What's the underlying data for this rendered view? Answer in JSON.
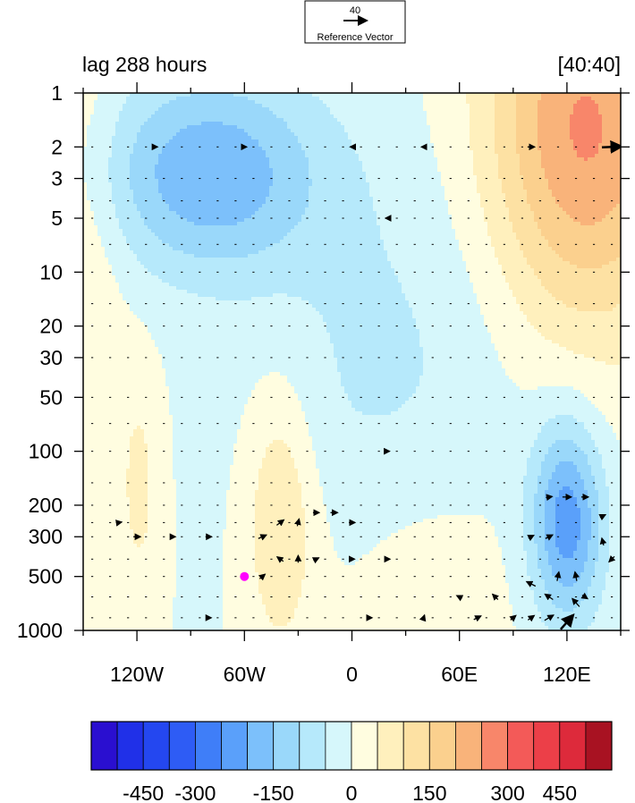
{
  "chart_data": {
    "type": "heatmap",
    "title_left": "lag 288 hours",
    "title_right": "[40:40]",
    "reference_vector": {
      "value": "40",
      "label": "Reference Vector"
    },
    "x_ticks": [
      "120W",
      "60W",
      "0",
      "60E",
      "120E"
    ],
    "x_tick_values": [
      -120,
      -60,
      0,
      60,
      120
    ],
    "xlim": [
      -150,
      150
    ],
    "y_ticks": [
      "1",
      "2",
      "3",
      "5",
      "10",
      "20",
      "30",
      "50",
      "100",
      "200",
      "300",
      "500",
      "1000"
    ],
    "y_tick_values": [
      1,
      2,
      3,
      5,
      10,
      20,
      30,
      50,
      100,
      200,
      300,
      500,
      1000
    ],
    "ylim": [
      1,
      1000
    ],
    "y_scale": "log",
    "y_direction": "reversed",
    "colorbar": {
      "tick_labels": [
        "-450",
        "-300",
        "-150",
        "0",
        "150",
        "300",
        "450"
      ],
      "tick_values": [
        -450,
        -300,
        -150,
        0,
        150,
        300,
        450
      ],
      "levels": [
        -525,
        -450,
        -375,
        -300,
        -250,
        -200,
        -150,
        -100,
        -50,
        0,
        50,
        100,
        150,
        200,
        250,
        300,
        375,
        450,
        525
      ],
      "colors": [
        "#2a0fd0",
        "#2030e8",
        "#2447f0",
        "#2e5cf5",
        "#3f7ef8",
        "#5aa0fa",
        "#7cc0fb",
        "#9ad8fa",
        "#b6e9fb",
        "#d6f7fb",
        "#fffde0",
        "#fff0bd",
        "#fde1a3",
        "#fbd08e",
        "#f9b37a",
        "#f8866a",
        "#f35a58",
        "#ec3f48",
        "#dd2a3b",
        "#a81222"
      ]
    },
    "marker": {
      "lon": -60,
      "pressure": 500,
      "color": "#ff00ff"
    },
    "field_blobs": [
      {
        "lon": -80,
        "p": 2.8,
        "slon": 60,
        "slp": 0.55,
        "amp": -190
      },
      {
        "lon": 20,
        "p": 35,
        "slon": 80,
        "slp": 1.3,
        "amp": -60
      },
      {
        "lon": 120,
        "p": 250,
        "slon": 20,
        "slp": 0.55,
        "amp": -230
      },
      {
        "lon": 130,
        "p": 1.6,
        "slon": 55,
        "slp": 1.1,
        "amp": 260
      },
      {
        "lon": -40,
        "p": 230,
        "slon": 20,
        "slp": 0.75,
        "amp": 110
      },
      {
        "lon": -118,
        "p": 160,
        "slon": 12,
        "slp": 0.7,
        "amp": 60
      },
      {
        "lon": -150,
        "p": 10,
        "slon": 22,
        "slp": 1.8,
        "amp": 55
      },
      {
        "lon": 40,
        "p": 500,
        "slon": 55,
        "slp": 0.7,
        "amp": 45
      }
    ],
    "vectors": [
      {
        "lon": -110,
        "p": 2,
        "u": 6,
        "v": 0
      },
      {
        "lon": -60,
        "p": 2,
        "u": 5,
        "v": 0
      },
      {
        "lon": 0,
        "p": 2,
        "u": -4,
        "v": 0
      },
      {
        "lon": 40,
        "p": 2,
        "u": -5,
        "v": 0
      },
      {
        "lon": 100,
        "p": 2,
        "u": 8,
        "v": 0
      },
      {
        "lon": 145,
        "p": 2,
        "u": 22,
        "v": 1
      },
      {
        "lon": 20,
        "p": 5,
        "u": -5,
        "v": 0
      },
      {
        "lon": 20,
        "p": 100,
        "u": 4,
        "v": 0
      },
      {
        "lon": -130,
        "p": 250,
        "u": 6,
        "v": 1
      },
      {
        "lon": -120,
        "p": 300,
        "u": 8,
        "v": 0
      },
      {
        "lon": -100,
        "p": 300,
        "u": 6,
        "v": 0
      },
      {
        "lon": -80,
        "p": 300,
        "u": 7,
        "v": 0
      },
      {
        "lon": -50,
        "p": 300,
        "u": 9,
        "v": 4
      },
      {
        "lon": -40,
        "p": 250,
        "u": 8,
        "v": 6
      },
      {
        "lon": -30,
        "p": 250,
        "u": 2,
        "v": 8
      },
      {
        "lon": -20,
        "p": 220,
        "u": 7,
        "v": 0
      },
      {
        "lon": -10,
        "p": 220,
        "u": 8,
        "v": 0
      },
      {
        "lon": 0,
        "p": 250,
        "u": 7,
        "v": 0
      },
      {
        "lon": -40,
        "p": 400,
        "u": -7,
        "v": 5
      },
      {
        "lon": -30,
        "p": 400,
        "u": 0,
        "v": 8
      },
      {
        "lon": -20,
        "p": 400,
        "u": 6,
        "v": 3
      },
      {
        "lon": 0,
        "p": 400,
        "u": 6,
        "v": 0
      },
      {
        "lon": 20,
        "p": 400,
        "u": 5,
        "v": 0
      },
      {
        "lon": -50,
        "p": 500,
        "u": 6,
        "v": 5
      },
      {
        "lon": 110,
        "p": 180,
        "u": 7,
        "v": 1
      },
      {
        "lon": 120,
        "p": 180,
        "u": 10,
        "v": 0
      },
      {
        "lon": 130,
        "p": 180,
        "u": 8,
        "v": 0
      },
      {
        "lon": 140,
        "p": 230,
        "u": 6,
        "v": 3
      },
      {
        "lon": 100,
        "p": 300,
        "u": 6,
        "v": 3
      },
      {
        "lon": 110,
        "p": 300,
        "u": 8,
        "v": 4
      },
      {
        "lon": 140,
        "p": 320,
        "u": -2,
        "v": 8
      },
      {
        "lon": 145,
        "p": 400,
        "u": -6,
        "v": -6
      },
      {
        "lon": 80,
        "p": 650,
        "u": -6,
        "v": 6
      },
      {
        "lon": 100,
        "p": 550,
        "u": -10,
        "v": 5
      },
      {
        "lon": 110,
        "p": 650,
        "u": -9,
        "v": 6
      },
      {
        "lon": 115,
        "p": 500,
        "u": 2,
        "v": 10
      },
      {
        "lon": 125,
        "p": 500,
        "u": -2,
        "v": 10
      },
      {
        "lon": 130,
        "p": 650,
        "u": 6,
        "v": -4
      },
      {
        "lon": 40,
        "p": 850,
        "u": 2,
        "v": 6
      },
      {
        "lon": 60,
        "p": 650,
        "u": -6,
        "v": 3
      },
      {
        "lon": 70,
        "p": 850,
        "u": 8,
        "v": 4
      },
      {
        "lon": 90,
        "p": 850,
        "u": 6,
        "v": 5
      },
      {
        "lon": 100,
        "p": 850,
        "u": 7,
        "v": 5
      },
      {
        "lon": 110,
        "p": 850,
        "u": 10,
        "v": 6
      },
      {
        "lon": 120,
        "p": 900,
        "u": 14,
        "v": 16
      },
      {
        "lon": 125,
        "p": 700,
        "u": -8,
        "v": 9
      },
      {
        "lon": -80,
        "p": 850,
        "u": 6,
        "v": 0
      },
      {
        "lon": 10,
        "p": 850,
        "u": 5,
        "v": 0
      }
    ]
  }
}
